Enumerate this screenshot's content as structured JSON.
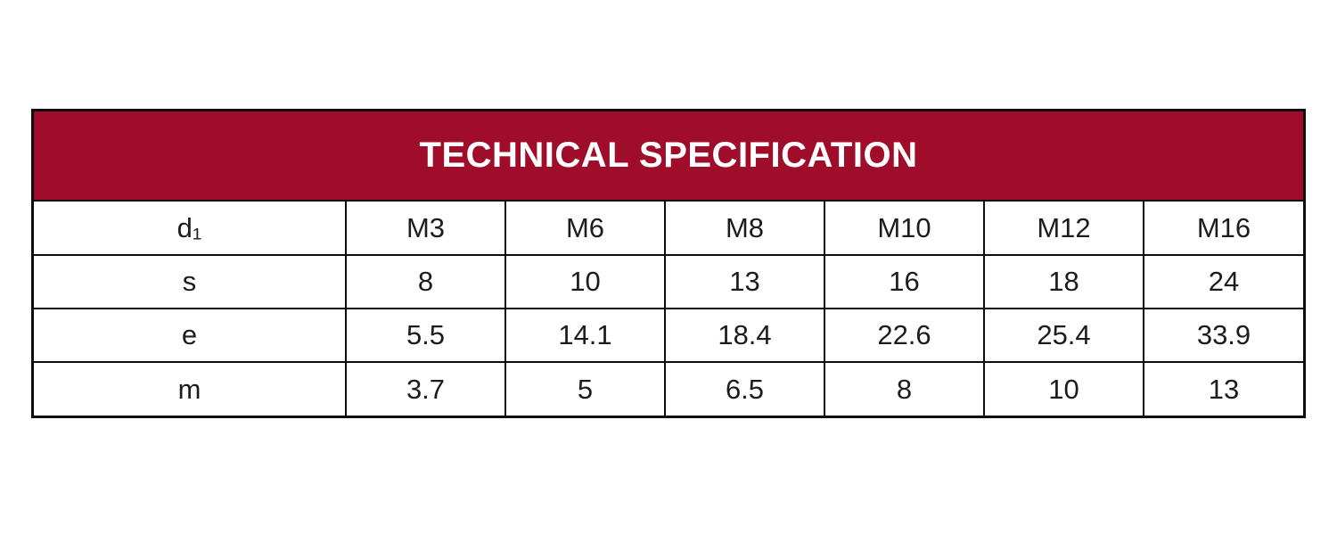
{
  "title": "TECHNICAL SPECIFICATION",
  "colors": {
    "header_bg": "#A00D2B",
    "header_text": "#FFFFFF",
    "border": "#0D0D0D",
    "cell_text": "#1C1C1C",
    "page_bg": "#FFFFFF"
  },
  "chart_data": {
    "type": "table",
    "title": "TECHNICAL SPECIFICATION",
    "note": "row 0 is the size header row",
    "rows": [
      {
        "label": "d₁",
        "values": [
          "M3",
          "M6",
          "M8",
          "M10",
          "M12",
          "M16"
        ]
      },
      {
        "label": "s",
        "values": [
          "8",
          "10",
          "13",
          "16",
          "18",
          "24"
        ]
      },
      {
        "label": "e",
        "values": [
          "5.5",
          "14.1",
          "18.4",
          "22.6",
          "25.4",
          "33.9"
        ]
      },
      {
        "label": "m",
        "values": [
          "3.7",
          "5",
          "6.5",
          "8",
          "10",
          "13"
        ]
      }
    ]
  }
}
